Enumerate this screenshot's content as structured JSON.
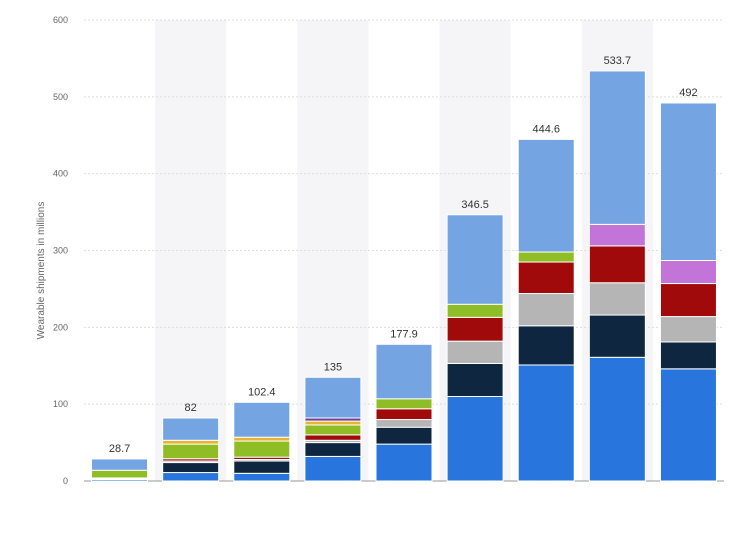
{
  "chart_data": {
    "type": "bar",
    "stacked": true,
    "title": "",
    "xlabel": "",
    "ylabel": "Wearable shipments in millions",
    "ylim": [
      0,
      600
    ],
    "yticks": [
      0,
      100,
      200,
      300,
      400,
      500,
      600
    ],
    "grid": true,
    "categories": [
      "",
      "",
      "",
      "",
      "",
      "",
      "",
      "",
      ""
    ],
    "totals": [
      28.7,
      82,
      102.4,
      135,
      177.9,
      346.5,
      444.6,
      533.7,
      492
    ],
    "series": [
      {
        "color": "#2876dd",
        "values": [
          2,
          11,
          10,
          32,
          48,
          110,
          151,
          161,
          146
        ]
      },
      {
        "color": "#0e2640",
        "values": [
          1,
          13,
          16,
          18,
          22,
          43,
          51,
          55,
          35
        ]
      },
      {
        "color": "#b5b5b5",
        "values": [
          0.5,
          2,
          2,
          3,
          10,
          29,
          42,
          42,
          33
        ]
      },
      {
        "color": "#a10a0a",
        "values": [
          0.5,
          3,
          3,
          7,
          14,
          31,
          41,
          48,
          43
        ]
      },
      {
        "color": "#8ebd25",
        "values": [
          10,
          19,
          21,
          13,
          13,
          17,
          13,
          0,
          0
        ]
      },
      {
        "color": "#c374d8",
        "values": [
          0,
          0,
          0,
          0,
          0,
          0,
          0,
          28,
          30
        ]
      },
      {
        "color": "#e8b432",
        "values": [
          0,
          5,
          5,
          5,
          0,
          0,
          0,
          0,
          0
        ]
      },
      {
        "color": "#6b3f9a",
        "values": [
          0,
          0,
          0,
          4,
          0,
          0,
          0,
          0,
          0
        ]
      },
      {
        "color": "#75a4e2",
        "values": [
          14.7,
          29,
          45.4,
          53,
          70.9,
          116.5,
          146.6,
          199.7,
          205
        ]
      }
    ],
    "band_color": "#f5f5f7"
  }
}
